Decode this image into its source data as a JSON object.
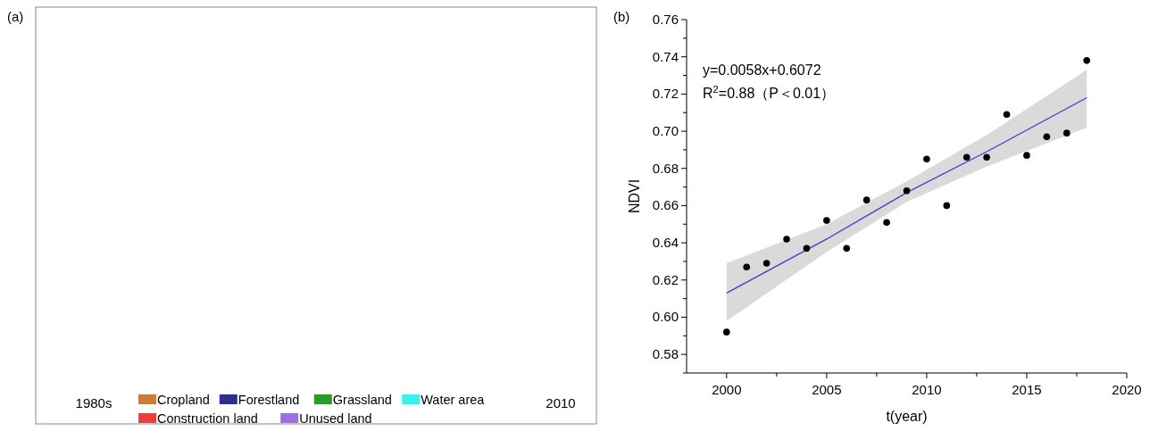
{
  "chart_data": [
    {
      "type": "other",
      "title": "(a)",
      "categories": [
        "Cropland",
        "Forestland",
        "Grassland",
        "Water area",
        "Construction land",
        "Unused land"
      ],
      "colors": [
        "#c87d3c",
        "#2e2e8c",
        "#2e9a2e",
        "#3cf0f0",
        "#f03c3c",
        "#a06ee6"
      ],
      "annotations": [
        "1980s",
        "2010"
      ]
    },
    {
      "type": "scatter",
      "title": "(b)",
      "xlabel": "t(year)",
      "ylabel": "NDVI",
      "xlim": [
        1998,
        2020
      ],
      "ylim": [
        0.57,
        0.76
      ],
      "xticks": [
        2000,
        {
          "value": 2002.5,
          "label": null
        },
        2005,
        {
          "value": 2007.5,
          "label": null
        },
        2010,
        {
          "value": 2012.5,
          "label": null
        },
        2015,
        {
          "value": 2017.5,
          "label": null
        },
        2020
      ],
      "yticks": [
        {
          "value": 0.57,
          "label": null
        },
        0.58,
        {
          "value": 0.59,
          "label": null
        },
        {
          "value": 0.6,
          "label": "0.60"
        },
        {
          "value": 0.61,
          "label": null
        },
        0.62,
        {
          "value": 0.63,
          "label": null
        },
        0.64,
        {
          "value": 0.65,
          "label": null
        },
        0.66,
        {
          "value": 0.67,
          "label": null
        },
        0.68,
        {
          "value": 0.69,
          "label": null
        },
        {
          "value": 0.7,
          "label": "0.70"
        },
        {
          "value": 0.71,
          "label": null
        },
        0.72,
        {
          "value": 0.73,
          "label": null
        },
        0.74,
        {
          "value": 0.75,
          "label": null
        },
        0.76
      ],
      "grid": false,
      "annotations": [
        "y=0.0058x+0.6072",
        "R$^{2}$=0.88（P＜0.01）"
      ],
      "series": [
        {
          "type": "line",
          "color": "#3c3cdc",
          "x": [
            2000,
            2005,
            2009,
            2013,
            2018
          ],
          "values": [
            0.613,
            0.642,
            0.667,
            0.689,
            0.718
          ],
          "lower": [
            0.598,
            0.635,
            0.662,
            0.681,
            0.702
          ],
          "upper": [
            0.629,
            0.65,
            0.673,
            0.698,
            0.733
          ]
        },
        {
          "type": "scatter",
          "marker": "circle",
          "color": "#000000",
          "x": [
            2000,
            2001,
            2002,
            2003,
            2004,
            2005,
            2006,
            2007,
            2008,
            2009,
            2010,
            2011,
            2012,
            2013,
            2014,
            2015,
            2016,
            2017,
            2018
          ],
          "values": [
            0.592,
            0.627,
            0.629,
            0.642,
            0.637,
            0.652,
            0.637,
            0.663,
            0.651,
            0.668,
            0.685,
            0.66,
            0.686,
            0.686,
            0.709,
            0.687,
            0.697,
            0.699,
            0.738
          ]
        }
      ]
    }
  ]
}
